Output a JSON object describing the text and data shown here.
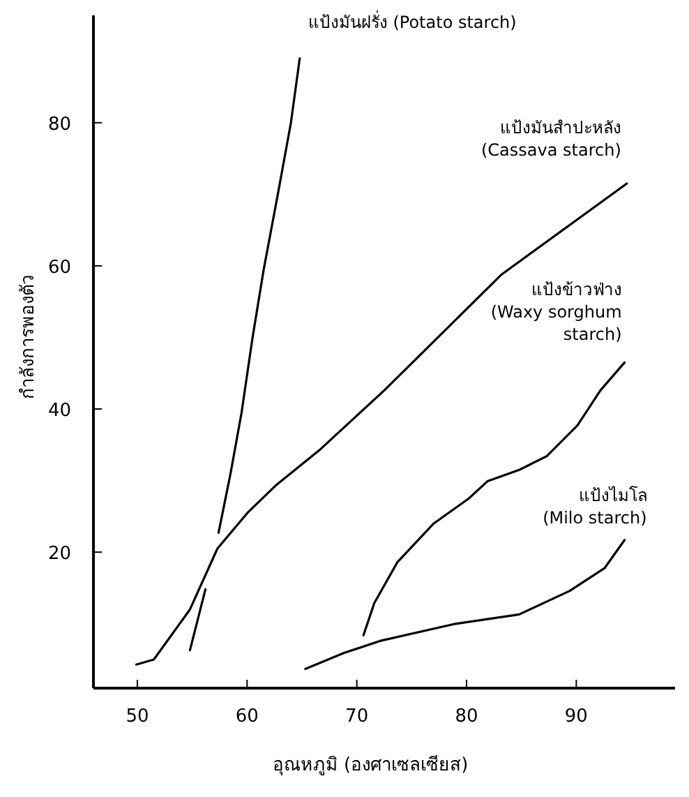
{
  "chart_data": {
    "type": "line",
    "xlabel": "อุณหภูมิ (องศาเซลเซียส)",
    "ylabel": "กำลังการพองตัว",
    "xlim": [
      46,
      99
    ],
    "ylim": [
      1,
      95
    ],
    "xticks": [
      50,
      60,
      70,
      80,
      90
    ],
    "yticks": [
      20,
      40,
      60,
      80
    ],
    "grid": false,
    "legend": false,
    "marker": "none",
    "line_style": "solid",
    "series": [
      {
        "color": "#000000",
        "x": [
          54.8,
          56.2
        ],
        "values": [
          6.3,
          14.8
        ]
      },
      {
        "name": "แป้งมันฝรั่ง (Potato starch)",
        "color": "#000000",
        "x": [
          57.4,
          58.5,
          59.5,
          60.5,
          61.5,
          62.8,
          64,
          64.8
        ],
        "values": [
          22.7,
          31,
          39.5,
          50,
          59.4,
          70,
          80,
          89
        ]
      },
      {
        "name": "แป้งมันสำปะหลัง\n(Cassava starch)",
        "color": "#000000",
        "x": [
          49.9,
          51.5,
          54.8,
          57.3,
          60.1,
          62.6,
          66.7,
          72.5,
          83.2,
          94.6
        ],
        "values": [
          4.3,
          5,
          12,
          20.5,
          25.6,
          29.3,
          34.4,
          42.6,
          58.8,
          71.5
        ]
      },
      {
        "name": "แป้งข้าวฟ่าง\n(Waxy sorghum\nstarch)",
        "color": "#000000",
        "x": [
          70.6,
          71.6,
          73.7,
          77,
          80.2,
          81.9,
          84.8,
          87.3,
          90.1,
          92.2,
          94.4
        ],
        "values": [
          8.4,
          12.9,
          18.6,
          24,
          27.5,
          29.9,
          31.5,
          33.4,
          37.7,
          42.6,
          46.5
        ]
      },
      {
        "name": "แป้งไมโล\n(Milo starch)",
        "color": "#000000",
        "x": [
          65.3,
          68.8,
          72.1,
          79,
          84.8,
          89.4,
          92.6,
          94.4
        ],
        "values": [
          3.7,
          5.9,
          7.6,
          10,
          11.3,
          14.6,
          17.8,
          21.7
        ]
      }
    ]
  }
}
